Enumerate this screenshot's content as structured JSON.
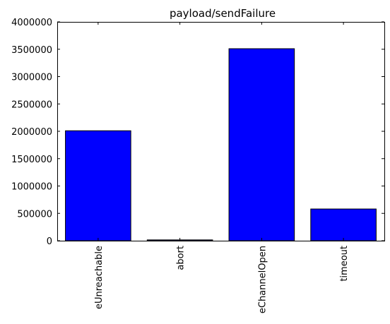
{
  "chart_data": {
    "type": "bar",
    "title": "payload/sendFailure",
    "xlabel": "",
    "ylabel": "",
    "categories": [
      "eUnreachable",
      "abort",
      "eChannelOpen",
      "timeout"
    ],
    "values": [
      2010000,
      15000,
      3510000,
      580000
    ],
    "ylim": [
      0,
      4000000
    ],
    "yticks": [
      0,
      500000,
      1000000,
      1500000,
      2000000,
      2500000,
      3000000,
      3500000,
      4000000
    ],
    "ytick_labels": [
      "0",
      "500000",
      "1000000",
      "1500000",
      "2000000",
      "2500000",
      "3000000",
      "3500000",
      "4000000"
    ],
    "bar_color": "#0000ff",
    "edge_color": "#000000",
    "grid": false,
    "legend": "none"
  }
}
